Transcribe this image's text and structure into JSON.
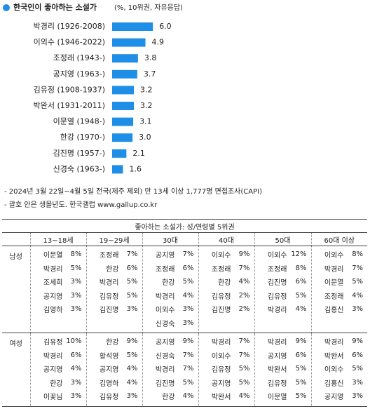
{
  "chart_data": {
    "type": "bar",
    "orientation": "horizontal",
    "title": "한국인이 좋아하는 소설가",
    "subtitle": "(%, 10위권, 자유응답)",
    "categories": [
      "박경리 (1926-2008)",
      "이외수 (1946-2022)",
      "조정래 (1943-)",
      "공지영 (1963-)",
      "김유정 (1908-1937)",
      "박완서 (1931-2011)",
      "이문열 (1948-)",
      "한강 (1970-)",
      "김진명 (1957-)",
      "신경숙 (1963-)"
    ],
    "values": [
      6.0,
      4.9,
      3.8,
      3.7,
      3.2,
      3.2,
      3.1,
      3.0,
      2.1,
      1.6
    ],
    "value_labels": [
      "6.0",
      "4.9",
      "3.8",
      "3.7",
      "3.2",
      "3.2",
      "3.1",
      "3.0",
      "2.1",
      "1.6"
    ],
    "color": "#1e8ee6"
  },
  "notes": [
    "- 2024년 3월 22일~4월 5일 전국(제주 제외) 만 13세 이상 1,777명 면접조사(CAPI)",
    "- 괄호 안은 생몰년도. 한국갤럽 www.gallup.co.kr"
  ],
  "table": {
    "title": "좋아하는 소설가: 성/연령별 5위권",
    "headers": [
      "13~18세",
      "19~29세",
      "30대",
      "40대",
      "50대",
      "60대 이상"
    ],
    "groups": [
      {
        "label": "남성",
        "columns": [
          [
            [
              "이문열",
              "8%"
            ],
            [
              "박경리",
              "5%"
            ],
            [
              "조세희",
              "3%"
            ],
            [
              "공지영",
              "3%"
            ],
            [
              "김영하",
              "3%"
            ]
          ],
          [
            [
              "조정래",
              "7%"
            ],
            [
              "한강",
              "6%"
            ],
            [
              "박경리",
              "5%"
            ],
            [
              "김유정",
              "5%"
            ],
            [
              "김진명",
              "3%"
            ]
          ],
          [
            [
              "공지영",
              "7%"
            ],
            [
              "조정래",
              "6%"
            ],
            [
              "한강",
              "5%"
            ],
            [
              "박경리",
              "4%"
            ],
            [
              "이외수",
              "3%"
            ],
            [
              "신경숙",
              "3%"
            ]
          ],
          [
            [
              "이외수",
              "9%"
            ],
            [
              "조정래",
              "7%"
            ],
            [
              "한강",
              "4%"
            ],
            [
              "김유정",
              "2%"
            ],
            [
              "김진명",
              "2%"
            ]
          ],
          [
            [
              "이외수",
              "12%"
            ],
            [
              "조정래",
              "8%"
            ],
            [
              "김진명",
              "6%"
            ],
            [
              "김유정",
              "5%"
            ],
            [
              "박경리",
              "4%"
            ]
          ],
          [
            [
              "이외수",
              "8%"
            ],
            [
              "박경리",
              "7%"
            ],
            [
              "이문열",
              "5%"
            ],
            [
              "조정래",
              "4%"
            ],
            [
              "김홍신",
              "3%"
            ]
          ]
        ]
      },
      {
        "label": "여성",
        "columns": [
          [
            [
              "김유정",
              "10%"
            ],
            [
              "박경리",
              "6%"
            ],
            [
              "공지영",
              "4%"
            ],
            [
              "한강",
              "3%"
            ],
            [
              "이꽃님",
              "3%"
            ]
          ],
          [
            [
              "한강",
              "9%"
            ],
            [
              "황석영",
              "5%"
            ],
            [
              "공지영",
              "4%"
            ],
            [
              "김영하",
              "4%"
            ],
            [
              "김유정",
              "3%"
            ]
          ],
          [
            [
              "공지영",
              "9%"
            ],
            [
              "신경숙",
              "7%"
            ],
            [
              "박경리",
              "7%"
            ],
            [
              "김진명",
              "5%"
            ],
            [
              "한강",
              "4%"
            ]
          ],
          [
            [
              "박경리",
              "7%"
            ],
            [
              "이외수",
              "7%"
            ],
            [
              "김유정",
              "5%"
            ],
            [
              "공지영",
              "5%"
            ],
            [
              "박완서",
              "4%"
            ]
          ],
          [
            [
              "박경리",
              "9%"
            ],
            [
              "공지영",
              "6%"
            ],
            [
              "박완서",
              "5%"
            ],
            [
              "김유정",
              "5%"
            ],
            [
              "이문열",
              "5%"
            ]
          ],
          [
            [
              "박경리",
              "9%"
            ],
            [
              "박완서",
              "6%"
            ],
            [
              "이외수",
              "5%"
            ],
            [
              "김홍신",
              "3%"
            ],
            [
              "공지영",
              "3%"
            ]
          ]
        ]
      }
    ]
  }
}
